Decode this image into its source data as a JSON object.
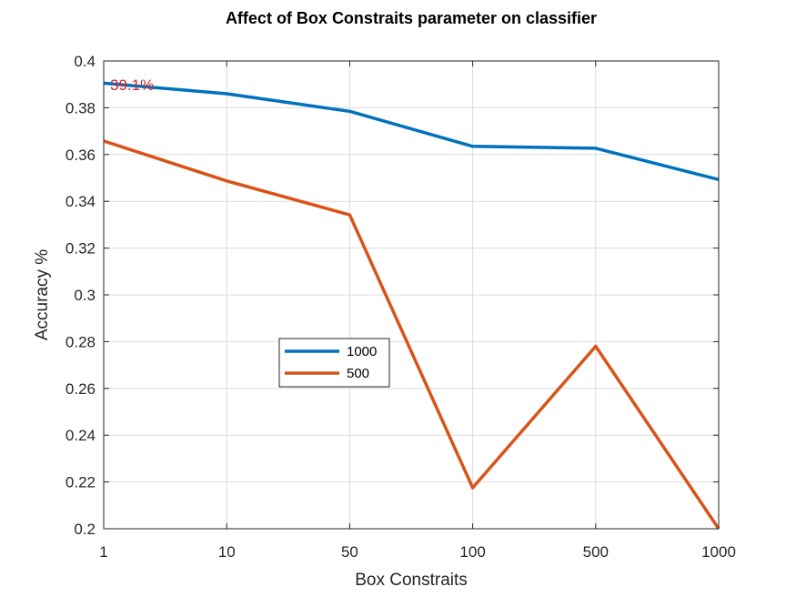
{
  "chart_data": {
    "type": "line",
    "title": "Affect of Box Constraits parameter on classifier",
    "xlabel": "Box Constraits",
    "ylabel": "Accuracy %",
    "categories": [
      "1",
      "10",
      "50",
      "100",
      "500",
      "1000"
    ],
    "ylim": [
      0.2,
      0.4
    ],
    "yticks": [
      0.2,
      0.22,
      0.24,
      0.26,
      0.28,
      0.3,
      0.32,
      0.34,
      0.36,
      0.38,
      0.4
    ],
    "ytick_labels": [
      "0.2",
      "0.22",
      "0.24",
      "0.26",
      "0.28",
      "0.3",
      "0.32",
      "0.34",
      "0.36",
      "0.38",
      "0.4"
    ],
    "grid": true,
    "legend_position": "center-left",
    "series": [
      {
        "name": "1000",
        "color": "#0072BD",
        "values": [
          0.3905,
          0.386,
          0.3785,
          0.3635,
          0.3627,
          0.3493
        ]
      },
      {
        "name": "500",
        "color": "#D95319",
        "values": [
          0.3658,
          0.3487,
          0.3342,
          0.2175,
          0.278,
          0.2
        ]
      }
    ],
    "annotations": [
      {
        "text": "39.1%",
        "x": "1",
        "y": 0.3905,
        "color": "#d62728"
      }
    ]
  }
}
